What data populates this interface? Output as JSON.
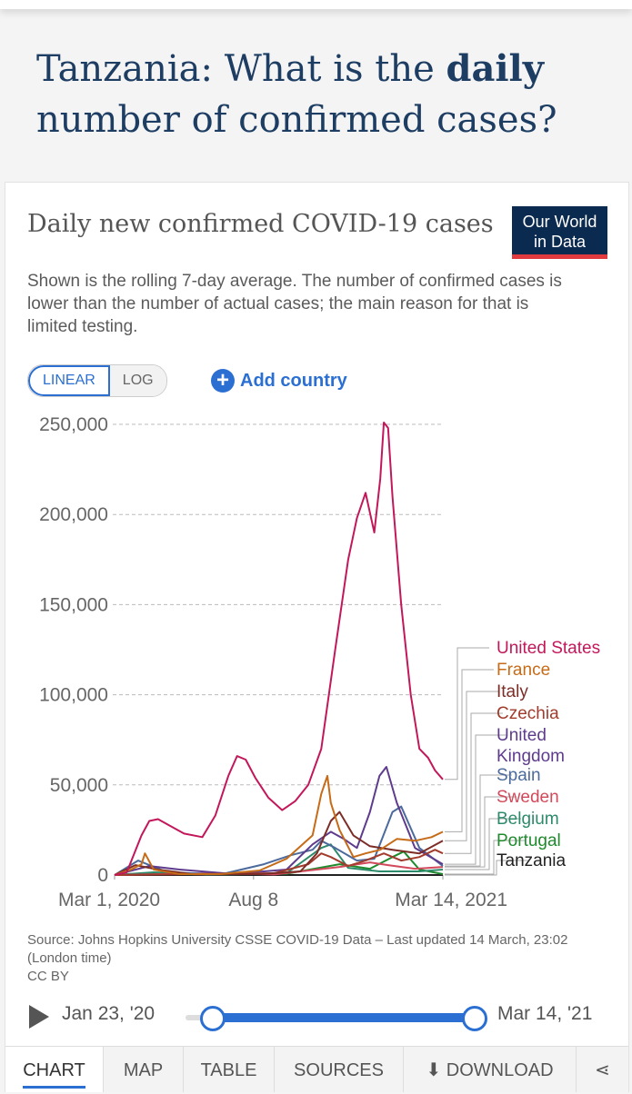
{
  "page": {
    "title_pre": "Tanzania: What is the ",
    "title_bold": "daily",
    "title_post": " number of confirmed cases?"
  },
  "card": {
    "chart_title": "Daily new confirmed COVID-19 cases",
    "logo_line1": "Our World",
    "logo_line2": "in Data",
    "subtitle": "Shown is the rolling 7-day average. The number of confirmed cases is lower than the number of actual cases; the main reason for that is limited testing.",
    "scale_linear": "LINEAR",
    "scale_log": "LOG",
    "add_country": "Add country",
    "source": "Source: Johns Hopkins University CSSE COVID-19 Data – Last updated 14 March, 23:02 (London time)",
    "license": "CC BY"
  },
  "timeline": {
    "start": "Jan 23, '20",
    "end": "Mar 14, '21"
  },
  "tabs": [
    "CHART",
    "MAP",
    "TABLE",
    "SOURCES",
    "DOWNLOAD"
  ],
  "colors": {
    "accent": "#2a6fd1",
    "title": "#1d3d63"
  },
  "chart_data": {
    "type": "line",
    "title": "Daily new confirmed COVID-19 cases",
    "subtitle": "Shown is the rolling 7-day average. The number of confirmed cases is lower than the number of actual cases; the main reason for that is limited testing.",
    "xlabel": "",
    "ylabel": "",
    "x_range": [
      "Mar 1, 2020",
      "Mar 14, 2021"
    ],
    "x_ticks": [
      {
        "label": "Mar 1, 2020",
        "date": "2020-03-01"
      },
      {
        "label": "Aug 8",
        "date": "2020-08-08"
      },
      {
        "label": "Mar 14, 2021",
        "date": "2021-03-14"
      }
    ],
    "y_ticks": [
      0,
      50000,
      100000,
      150000,
      200000,
      250000
    ],
    "y_tick_labels": [
      "0",
      "50,000",
      "100,000",
      "150,000",
      "200,000",
      "250,000"
    ],
    "ylim": [
      0,
      250000
    ],
    "grid": "horizontal dashed",
    "legend": "right, end-of-line labels",
    "series": [
      {
        "name": "United States",
        "color": "#c2185b",
        "x": [
          "2020-03-01",
          "2020-03-15",
          "2020-04-01",
          "2020-04-10",
          "2020-04-20",
          "2020-05-01",
          "2020-05-20",
          "2020-06-10",
          "2020-06-25",
          "2020-07-10",
          "2020-07-20",
          "2020-07-30",
          "2020-08-10",
          "2020-08-25",
          "2020-09-10",
          "2020-09-25",
          "2020-10-10",
          "2020-10-25",
          "2020-11-10",
          "2020-11-25",
          "2020-12-05",
          "2020-12-15",
          "2020-12-25",
          "2021-01-01",
          "2021-01-05",
          "2021-01-10",
          "2021-01-15",
          "2021-01-25",
          "2021-02-05",
          "2021-02-15",
          "2021-02-25",
          "2021-03-05",
          "2021-03-14"
        ],
        "values": [
          0,
          1500,
          22000,
          30000,
          31000,
          28000,
          23000,
          21000,
          33000,
          55000,
          66000,
          64000,
          54000,
          43000,
          36000,
          41000,
          50000,
          70000,
          125000,
          175000,
          198000,
          212000,
          190000,
          220000,
          251000,
          248000,
          210000,
          150000,
          100000,
          70000,
          65000,
          58000,
          53000
        ]
      },
      {
        "name": "France",
        "color": "#c66b17",
        "x": [
          "2020-03-01",
          "2020-03-20",
          "2020-04-01",
          "2020-04-05",
          "2020-04-15",
          "2020-05-15",
          "2020-07-01",
          "2020-08-15",
          "2020-09-15",
          "2020-10-15",
          "2020-10-25",
          "2020-11-01",
          "2020-11-05",
          "2020-11-15",
          "2020-12-01",
          "2020-12-15",
          "2021-01-01",
          "2021-01-20",
          "2021-02-10",
          "2021-03-01",
          "2021-03-14"
        ],
        "values": [
          0,
          3000,
          6000,
          12000,
          3000,
          500,
          500,
          2500,
          9000,
          22000,
          45000,
          55000,
          40000,
          25000,
          10000,
          12000,
          14000,
          20000,
          19000,
          21000,
          24000
        ]
      },
      {
        "name": "Italy",
        "color": "#7b2d26",
        "x": [
          "2020-03-01",
          "2020-03-25",
          "2020-04-20",
          "2020-06-01",
          "2020-08-15",
          "2020-10-01",
          "2020-10-20",
          "2020-11-05",
          "2020-11-15",
          "2020-12-01",
          "2020-12-20",
          "2021-01-15",
          "2021-02-15",
          "2021-03-14"
        ],
        "values": [
          0,
          5500,
          3000,
          300,
          500,
          2000,
          12000,
          30000,
          35000,
          22000,
          16000,
          14000,
          12000,
          19000
        ]
      },
      {
        "name": "Czechia",
        "color": "#a23b2c",
        "x": [
          "2020-03-01",
          "2020-09-01",
          "2020-10-10",
          "2020-10-25",
          "2020-11-05",
          "2020-11-25",
          "2020-12-15",
          "2021-01-05",
          "2021-01-25",
          "2021-02-15",
          "2021-03-05",
          "2021-03-14"
        ],
        "values": [
          0,
          1000,
          6000,
          12000,
          10000,
          5000,
          8000,
          12000,
          8000,
          10000,
          14000,
          12000
        ]
      },
      {
        "name": "United Kingdom",
        "color": "#5e3b8c",
        "x": [
          "2020-03-01",
          "2020-04-10",
          "2020-05-15",
          "2020-07-15",
          "2020-09-15",
          "2020-10-15",
          "2020-11-05",
          "2020-11-20",
          "2020-12-05",
          "2020-12-20",
          "2020-12-31",
          "2021-01-08",
          "2021-01-20",
          "2021-02-10",
          "2021-03-14"
        ],
        "values": [
          0,
          5000,
          3000,
          600,
          3000,
          17000,
          24000,
          20000,
          15000,
          35000,
          55000,
          60000,
          40000,
          15000,
          6000
        ]
      },
      {
        "name": "Spain",
        "color": "#4c6a9c",
        "x": [
          "2020-03-01",
          "2020-03-28",
          "2020-05-01",
          "2020-07-01",
          "2020-08-20",
          "2020-09-20",
          "2020-10-15",
          "2020-10-25",
          "2020-11-10",
          "2020-12-05",
          "2020-12-25",
          "2021-01-15",
          "2021-01-25",
          "2021-02-15",
          "2021-03-14"
        ],
        "values": [
          0,
          8000,
          1500,
          300,
          6000,
          11000,
          14000,
          19000,
          15000,
          8000,
          9000,
          35000,
          38000,
          15000,
          5000
        ]
      },
      {
        "name": "Sweden",
        "color": "#d1495b",
        "x": [
          "2020-03-01",
          "2020-06-15",
          "2020-09-01",
          "2020-11-15",
          "2020-12-20",
          "2021-01-10",
          "2021-02-10",
          "2021-03-14"
        ],
        "values": [
          0,
          1000,
          300,
          4500,
          7000,
          5500,
          3500,
          4500
        ]
      },
      {
        "name": "Belgium",
        "color": "#2d8a6b",
        "x": [
          "2020-03-01",
          "2020-04-15",
          "2020-06-15",
          "2020-09-15",
          "2020-10-25",
          "2020-11-05",
          "2020-11-25",
          "2020-12-31",
          "2021-02-15",
          "2021-03-14"
        ],
        "values": [
          0,
          1500,
          100,
          1000,
          15000,
          17000,
          4000,
          2000,
          2000,
          3000
        ]
      },
      {
        "name": "Portugal",
        "color": "#1f8a2c",
        "x": [
          "2020-03-01",
          "2020-04-10",
          "2020-06-15",
          "2020-09-15",
          "2020-11-15",
          "2020-12-20",
          "2021-01-15",
          "2021-01-28",
          "2021-02-15",
          "2021-03-14"
        ],
        "values": [
          0,
          800,
          300,
          700,
          6000,
          3500,
          10000,
          13000,
          3000,
          500
        ]
      },
      {
        "name": "Tanzania",
        "color": "#222222",
        "x": [
          "2020-03-01",
          "2020-04-25",
          "2020-05-10",
          "2021-03-14"
        ],
        "values": [
          0,
          20,
          0,
          0
        ]
      }
    ]
  }
}
